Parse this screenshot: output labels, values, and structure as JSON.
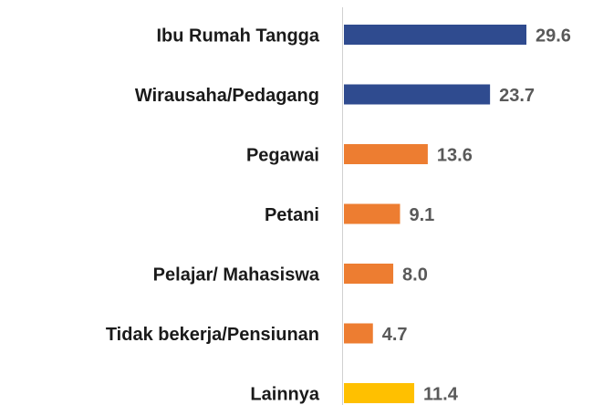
{
  "chart_data": {
    "type": "bar",
    "orientation": "horizontal",
    "categories": [
      "Ibu Rumah Tangga",
      "Wirausaha/Pedagang",
      "Pegawai",
      "Petani",
      "Pelajar/ Mahasiswa",
      "Tidak bekerja/Pensiunan",
      "Lainnya"
    ],
    "values": [
      29.6,
      23.7,
      13.6,
      9.1,
      8.0,
      4.7,
      11.4
    ],
    "value_labels": [
      "29.6",
      "23.7",
      "13.6",
      "9.1",
      "8.0",
      "4.7",
      "11.4"
    ],
    "colors": [
      "#2f4b8f",
      "#2f4b8f",
      "#ed7d31",
      "#ed7d31",
      "#ed7d31",
      "#ed7d31",
      "#ffc000"
    ]
  }
}
